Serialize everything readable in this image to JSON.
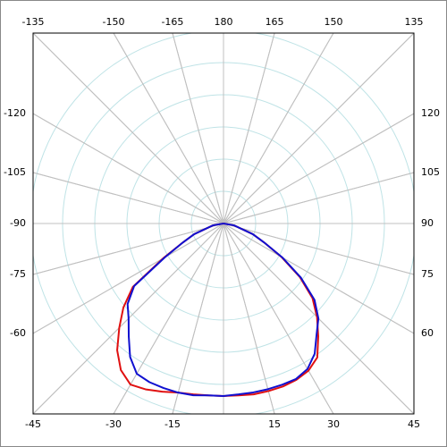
{
  "chart_data": {
    "type": "polar",
    "top_labels": [
      -135,
      -150,
      -165,
      180,
      165,
      150,
      135
    ],
    "bottom_labels": [
      -45,
      -30,
      -15,
      15,
      30,
      45
    ],
    "left_labels": [
      -120,
      -105,
      -90,
      -75,
      -60
    ],
    "right_labels": [
      120,
      105,
      90,
      75,
      60
    ],
    "rlim": [
      0,
      6
    ],
    "rticks": [
      1,
      2,
      3,
      4,
      5,
      6
    ],
    "angles": [
      -90,
      -80,
      -70,
      -65,
      -60,
      -55,
      -50,
      -45,
      -40,
      -35,
      -30,
      -25,
      -20,
      -15,
      -10,
      -5,
      0,
      5,
      10,
      15,
      20,
      25,
      30,
      35,
      40,
      45,
      50,
      55,
      60,
      65,
      70,
      80,
      90
    ],
    "series": [
      {
        "color": "#e01010",
        "values": [
          0,
          0.33,
          0.97,
          1.39,
          2.17,
          3.44,
          4.06,
          4.58,
          5.14,
          5.56,
          5.78,
          5.69,
          5.56,
          5.44,
          5.39,
          5.36,
          5.36,
          5.36,
          5.39,
          5.39,
          5.39,
          5.36,
          5.28,
          5.08,
          4.58,
          4.11,
          3.61,
          2.89,
          2.08,
          1.39,
          0.97,
          0.33,
          0
        ]
      },
      {
        "color": "#1010d0",
        "values": [
          0,
          0.33,
          0.97,
          1.39,
          2.11,
          3.39,
          3.89,
          4.17,
          4.58,
          5.06,
          5.39,
          5.44,
          5.44,
          5.44,
          5.42,
          5.36,
          5.36,
          5.33,
          5.33,
          5.33,
          5.33,
          5.33,
          5.22,
          4.94,
          4.5,
          4.17,
          3.69,
          2.94,
          2.11,
          1.39,
          0.97,
          0.33,
          0
        ]
      }
    ]
  }
}
